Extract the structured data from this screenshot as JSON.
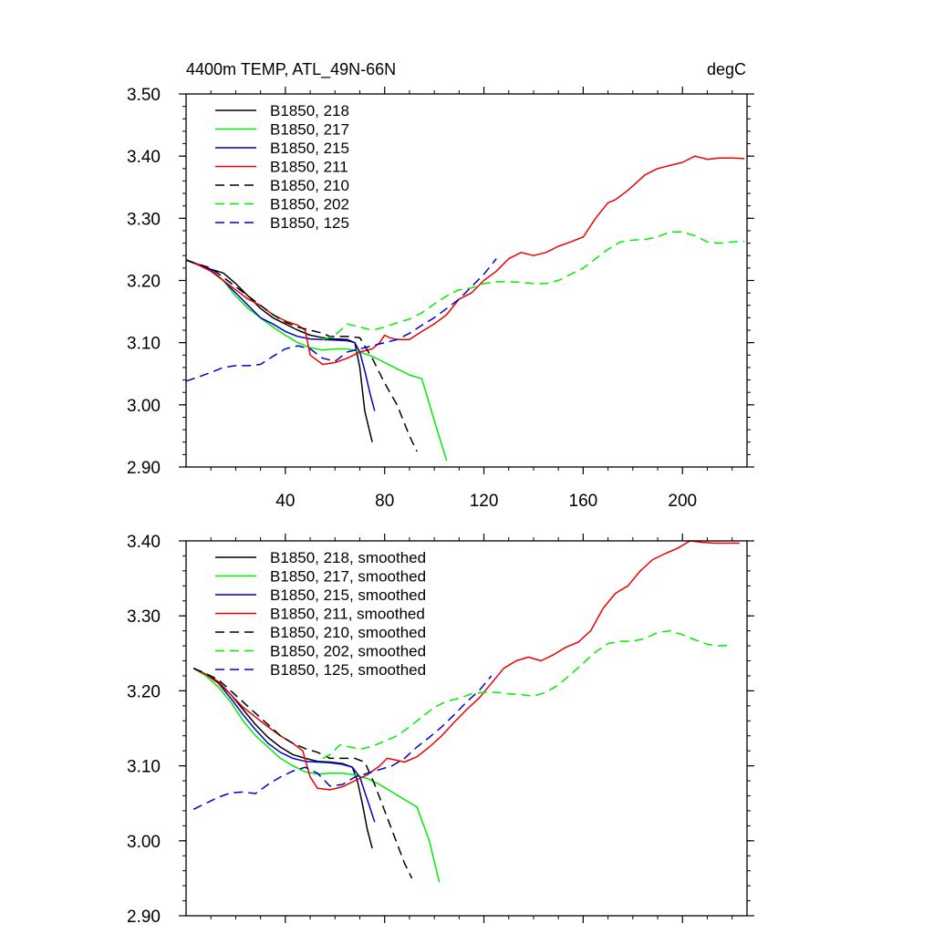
{
  "chart_data": [
    {
      "type": "line",
      "title": "4400m TEMP, ATL_49N-66N",
      "units": "degC",
      "xlim": [
        0,
        226
      ],
      "ylim": [
        2.9,
        3.5
      ],
      "x_ticks": [
        40,
        80,
        120,
        160,
        200
      ],
      "x_tick_labels": [
        "40",
        "80",
        "120",
        "160",
        "200"
      ],
      "y_ticks": [
        2.9,
        3.0,
        3.1,
        3.2,
        3.3,
        3.4,
        3.5
      ],
      "y_tick_labels": [
        "2.90",
        "3.00",
        "3.10",
        "3.20",
        "3.30",
        "3.40",
        "3.50"
      ],
      "legend_position": "top-left",
      "grid": false,
      "series": [
        {
          "name": "B1850, 218",
          "color": "#000000",
          "dash": "solid",
          "x": [
            0,
            5,
            10,
            15,
            20,
            25,
            30,
            35,
            40,
            45,
            50,
            55,
            60,
            65,
            68,
            70,
            72,
            75
          ],
          "y": [
            3.233,
            3.225,
            3.218,
            3.212,
            3.195,
            3.175,
            3.155,
            3.14,
            3.13,
            3.12,
            3.112,
            3.108,
            3.106,
            3.105,
            3.1,
            3.06,
            2.99,
            2.94
          ]
        },
        {
          "name": "B1850, 217",
          "color": "#00ee00",
          "dash": "solid",
          "x": [
            0,
            5,
            10,
            15,
            20,
            25,
            30,
            35,
            40,
            45,
            50,
            55,
            60,
            65,
            70,
            75,
            80,
            85,
            90,
            95,
            100,
            105
          ],
          "y": [
            3.233,
            3.225,
            3.215,
            3.2,
            3.175,
            3.155,
            3.14,
            3.125,
            3.112,
            3.1,
            3.092,
            3.088,
            3.09,
            3.09,
            3.085,
            3.078,
            3.068,
            3.058,
            3.048,
            3.042,
            2.975,
            2.91
          ]
        },
        {
          "name": "B1850, 215",
          "color": "#0000cc",
          "dash": "solid",
          "x": [
            0,
            5,
            10,
            15,
            20,
            25,
            30,
            35,
            40,
            45,
            50,
            55,
            60,
            65,
            68,
            70,
            72,
            74,
            76
          ],
          "y": [
            3.233,
            3.226,
            3.217,
            3.2,
            3.18,
            3.16,
            3.14,
            3.13,
            3.118,
            3.11,
            3.106,
            3.105,
            3.104,
            3.103,
            3.1,
            3.085,
            3.055,
            3.02,
            2.99
          ]
        },
        {
          "name": "B1850, 211",
          "color": "#ee0000",
          "dash": "solid",
          "x": [
            0,
            5,
            10,
            15,
            20,
            25,
            30,
            35,
            40,
            45,
            48,
            50,
            55,
            60,
            65,
            70,
            75,
            78,
            80,
            82,
            85,
            90,
            95,
            100,
            105,
            110,
            115,
            120,
            125,
            130,
            135,
            140,
            145,
            150,
            155,
            160,
            165,
            170,
            173,
            178,
            185,
            190,
            195,
            200,
            205,
            210,
            215,
            220,
            225
          ],
          "y": [
            3.233,
            3.225,
            3.215,
            3.2,
            3.185,
            3.17,
            3.16,
            3.145,
            3.135,
            3.128,
            3.12,
            3.08,
            3.065,
            3.068,
            3.075,
            3.085,
            3.09,
            3.1,
            3.112,
            3.108,
            3.105,
            3.105,
            3.118,
            3.13,
            3.145,
            3.17,
            3.18,
            3.2,
            3.215,
            3.235,
            3.245,
            3.24,
            3.245,
            3.255,
            3.262,
            3.27,
            3.3,
            3.325,
            3.33,
            3.345,
            3.37,
            3.38,
            3.385,
            3.39,
            3.4,
            3.395,
            3.397,
            3.397,
            3.396
          ]
        },
        {
          "name": "B1850, 210",
          "color": "#000000",
          "dash": "dashed",
          "x": [
            0,
            5,
            10,
            15,
            20,
            25,
            30,
            35,
            40,
            45,
            50,
            55,
            58,
            60,
            65,
            70,
            75,
            80,
            85,
            90,
            93
          ],
          "y": [
            3.233,
            3.226,
            3.22,
            3.205,
            3.19,
            3.175,
            3.16,
            3.145,
            3.133,
            3.125,
            3.12,
            3.115,
            3.11,
            3.11,
            3.11,
            3.108,
            3.075,
            3.035,
            3.0,
            2.95,
            2.925
          ]
        },
        {
          "name": "B1850, 202",
          "color": "#00ee00",
          "dash": "dashed",
          "x": [
            55,
            60,
            65,
            70,
            75,
            80,
            85,
            90,
            95,
            100,
            105,
            110,
            115,
            120,
            125,
            130,
            135,
            140,
            145,
            150,
            155,
            160,
            165,
            170,
            175,
            180,
            185,
            190,
            195,
            200,
            205,
            210,
            215,
            220,
            225
          ],
          "y": [
            3.105,
            3.112,
            3.13,
            3.125,
            3.12,
            3.125,
            3.132,
            3.138,
            3.148,
            3.162,
            3.175,
            3.185,
            3.188,
            3.195,
            3.198,
            3.198,
            3.197,
            3.195,
            3.195,
            3.2,
            3.21,
            3.22,
            3.235,
            3.25,
            3.262,
            3.265,
            3.266,
            3.27,
            3.278,
            3.278,
            3.272,
            3.262,
            3.26,
            3.262,
            3.263
          ]
        },
        {
          "name": "B1850, 125",
          "color": "#0000cc",
          "dash": "dashed",
          "x": [
            0,
            5,
            10,
            15,
            20,
            25,
            30,
            35,
            40,
            45,
            50,
            55,
            60,
            65,
            70,
            75,
            80,
            85,
            90,
            95,
            100,
            105,
            110,
            115,
            120,
            125
          ],
          "y": [
            3.038,
            3.045,
            3.052,
            3.06,
            3.063,
            3.063,
            3.065,
            3.078,
            3.09,
            3.095,
            3.09,
            3.075,
            3.07,
            3.085,
            3.09,
            3.095,
            3.1,
            3.105,
            3.115,
            3.128,
            3.14,
            3.155,
            3.17,
            3.19,
            3.21,
            3.235
          ]
        }
      ]
    },
    {
      "type": "line",
      "title": "",
      "xlim": [
        0,
        226
      ],
      "ylim": [
        2.9,
        3.4
      ],
      "x_ticks": [
        40,
        80,
        120,
        160,
        200
      ],
      "x_tick_labels": [],
      "y_ticks": [
        2.9,
        3.0,
        3.1,
        3.2,
        3.3,
        3.4
      ],
      "y_tick_labels": [
        "2.90",
        "3.00",
        "3.10",
        "3.20",
        "3.30",
        "3.40"
      ],
      "legend_position": "top-left",
      "grid": false,
      "series": [
        {
          "name": "B1850, 218, smoothed",
          "color": "#000000",
          "dash": "solid",
          "x": [
            3,
            8,
            13,
            18,
            23,
            28,
            33,
            38,
            43,
            48,
            53,
            58,
            63,
            67,
            69,
            71,
            73,
            75
          ],
          "y": [
            3.23,
            3.222,
            3.212,
            3.195,
            3.175,
            3.155,
            3.138,
            3.125,
            3.115,
            3.11,
            3.106,
            3.105,
            3.103,
            3.098,
            3.08,
            3.05,
            3.015,
            2.99
          ]
        },
        {
          "name": "B1850, 217",
          "color": "#00ee00",
          "dash": "solid",
          "label": "B1850, 217, smoothed",
          "x": [
            3,
            8,
            13,
            18,
            23,
            28,
            33,
            38,
            43,
            48,
            53,
            58,
            63,
            68,
            73,
            78,
            83,
            88,
            93,
            98,
            102
          ],
          "y": [
            3.23,
            3.22,
            3.205,
            3.185,
            3.16,
            3.14,
            3.125,
            3.11,
            3.1,
            3.092,
            3.089,
            3.09,
            3.09,
            3.088,
            3.083,
            3.075,
            3.065,
            3.055,
            3.045,
            3.0,
            2.945
          ]
        },
        {
          "name": "B1850, 215",
          "color": "#0000cc",
          "dash": "solid",
          "label": "B1850, 215, smoothed",
          "x": [
            3,
            8,
            13,
            18,
            23,
            28,
            33,
            38,
            43,
            48,
            53,
            58,
            63,
            67,
            70,
            72,
            74,
            76
          ],
          "y": [
            3.23,
            3.222,
            3.21,
            3.19,
            3.168,
            3.148,
            3.13,
            3.118,
            3.11,
            3.106,
            3.105,
            3.104,
            3.102,
            3.098,
            3.085,
            3.065,
            3.045,
            3.025
          ]
        },
        {
          "name": "B1850, 211",
          "color": "#ee0000",
          "dash": "solid",
          "label": "B1850, 211, smoothed",
          "x": [
            3,
            8,
            13,
            18,
            23,
            28,
            33,
            38,
            43,
            47,
            50,
            53,
            58,
            63,
            68,
            73,
            78,
            81,
            84,
            88,
            93,
            98,
            103,
            108,
            113,
            118,
            123,
            128,
            133,
            138,
            143,
            148,
            153,
            158,
            163,
            168,
            173,
            178,
            183,
            188,
            193,
            198,
            203,
            208,
            213,
            218,
            223
          ],
          "y": [
            3.23,
            3.222,
            3.21,
            3.195,
            3.178,
            3.165,
            3.152,
            3.14,
            3.13,
            3.12,
            3.085,
            3.07,
            3.068,
            3.072,
            3.08,
            3.088,
            3.1,
            3.11,
            3.108,
            3.105,
            3.112,
            3.125,
            3.14,
            3.158,
            3.175,
            3.19,
            3.21,
            3.23,
            3.24,
            3.245,
            3.24,
            3.248,
            3.258,
            3.265,
            3.28,
            3.31,
            3.33,
            3.34,
            3.36,
            3.375,
            3.383,
            3.39,
            3.4,
            3.398,
            3.397,
            3.397,
            3.397
          ]
        },
        {
          "name": "B1850, 210",
          "color": "#000000",
          "dash": "dashed",
          "label": "B1850, 210, smoothed",
          "x": [
            3,
            8,
            13,
            18,
            23,
            28,
            33,
            38,
            43,
            48,
            53,
            58,
            63,
            68,
            72,
            76,
            80,
            84,
            88,
            91
          ],
          "y": [
            3.23,
            3.223,
            3.215,
            3.2,
            3.185,
            3.17,
            3.155,
            3.14,
            3.13,
            3.123,
            3.118,
            3.11,
            3.11,
            3.11,
            3.105,
            3.075,
            3.04,
            3.005,
            2.97,
            2.95
          ]
        },
        {
          "name": "B1850, 202",
          "color": "#00ee00",
          "dash": "dashed",
          "label": "B1850, 202, smoothed",
          "x": [
            55,
            58,
            62,
            66,
            70,
            75,
            80,
            85,
            90,
            95,
            100,
            105,
            110,
            115,
            120,
            125,
            130,
            135,
            140,
            145,
            150,
            155,
            160,
            165,
            170,
            175,
            180,
            185,
            190,
            195,
            200,
            205,
            210,
            215,
            220
          ],
          "y": [
            3.11,
            3.115,
            3.128,
            3.125,
            3.122,
            3.126,
            3.133,
            3.14,
            3.152,
            3.165,
            3.178,
            3.186,
            3.19,
            3.196,
            3.198,
            3.198,
            3.196,
            3.195,
            3.193,
            3.198,
            3.208,
            3.222,
            3.237,
            3.252,
            3.263,
            3.266,
            3.266,
            3.27,
            3.278,
            3.28,
            3.275,
            3.268,
            3.262,
            3.26,
            3.261
          ]
        },
        {
          "name": "B1850, 125",
          "color": "#0000cc",
          "dash": "dashed",
          "label": "B1850, 125, smoothed",
          "x": [
            3,
            8,
            13,
            18,
            23,
            28,
            33,
            38,
            43,
            48,
            53,
            58,
            63,
            68,
            73,
            78,
            83,
            88,
            93,
            98,
            103,
            108,
            113,
            118,
            123
          ],
          "y": [
            3.042,
            3.05,
            3.058,
            3.064,
            3.065,
            3.063,
            3.075,
            3.085,
            3.093,
            3.098,
            3.09,
            3.073,
            3.075,
            3.085,
            3.09,
            3.095,
            3.1,
            3.11,
            3.125,
            3.138,
            3.152,
            3.168,
            3.185,
            3.2,
            3.22
          ]
        }
      ]
    }
  ],
  "legends": [
    [
      "B1850, 218",
      "B1850, 217",
      "B1850, 215",
      "B1850, 211",
      "B1850, 210",
      "B1850, 202",
      "B1850, 125"
    ],
    [
      "B1850, 218, smoothed",
      "B1850, 217, smoothed",
      "B1850, 215, smoothed",
      "B1850, 211, smoothed",
      "B1850, 210, smoothed",
      "B1850, 202, smoothed",
      "B1850, 125, smoothed"
    ]
  ]
}
